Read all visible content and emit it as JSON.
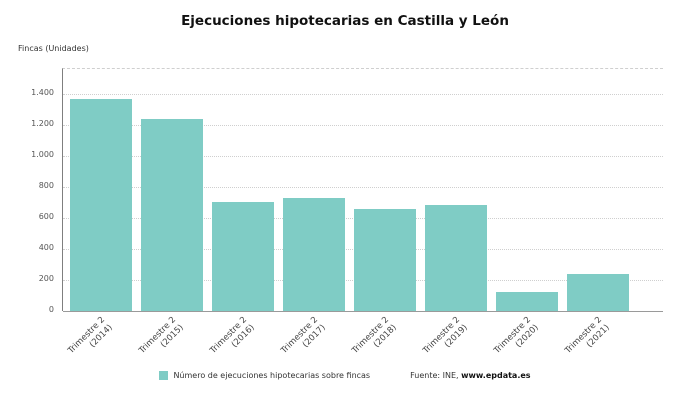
{
  "title": "Ejecuciones hipotecarias en Castilla y León",
  "axis_unit_label": "Fincas (Unidades)",
  "legend": {
    "label": "Número de ejecuciones hipotecarias sobre fincas"
  },
  "source": {
    "prefix": "Fuente: INE, ",
    "site": "www.epdata.es"
  },
  "colors": {
    "bar": "#7fccc5",
    "grid": "#cfcfcf",
    "axis": "#7f7f7f"
  },
  "chart_data": {
    "type": "bar",
    "title": "Ejecuciones hipotecarias en Castilla y León",
    "categories": [
      "Trimestre 2 (2014)",
      "Trimestre 2 (2015)",
      "Trimestre 2 (2016)",
      "Trimestre 2 (2017)",
      "Trimestre 2 (2018)",
      "Trimestre 2 (2019)",
      "Trimestre 2 (2020)",
      "Trimestre 2 (2021)"
    ],
    "category_lines": [
      [
        "Trimestre 2",
        "(2014)"
      ],
      [
        "Trimestre 2",
        "(2015)"
      ],
      [
        "Trimestre 2",
        "(2016)"
      ],
      [
        "Trimestre 2",
        "(2017)"
      ],
      [
        "Trimestre 2",
        "(2018)"
      ],
      [
        "Trimestre 2",
        "(2019)"
      ],
      [
        "Trimestre 2",
        "(2020)"
      ],
      [
        "Trimestre 2",
        "(2021)"
      ]
    ],
    "values": [
      1365,
      1240,
      705,
      730,
      655,
      685,
      125,
      240
    ],
    "series_name": "Número de ejecuciones hipotecarias sobre fincas",
    "xlabel": "",
    "ylabel": "Fincas (Unidades)",
    "ylim": [
      0,
      1400
    ],
    "yticks": [
      0,
      200,
      400,
      600,
      800,
      1000,
      1200,
      1400
    ],
    "ytick_labels": [
      "0",
      "200",
      "400",
      "600",
      "800",
      "1.000",
      "1.200",
      "1.400"
    ],
    "grid": true,
    "legend_position": "bottom",
    "source": "Fuente: INE, www.epdata.es"
  }
}
